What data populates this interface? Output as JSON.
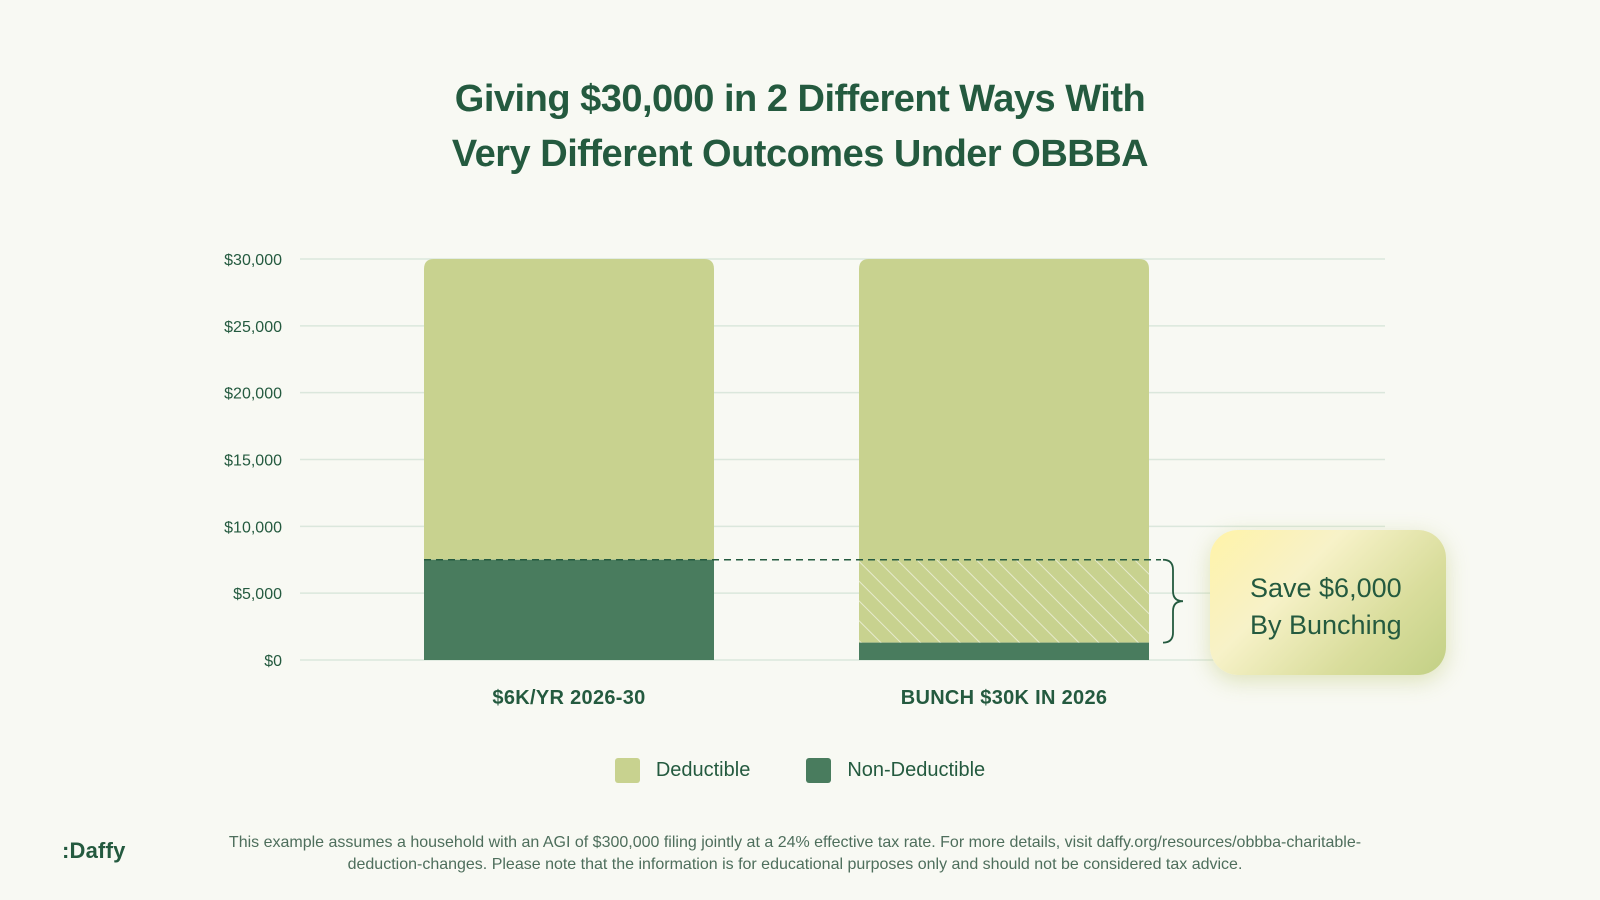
{
  "title": {
    "line1": "Giving $30,000 in 2 Different Ways With",
    "line2": "Very Different Outcomes Under OBBBA"
  },
  "colors": {
    "deductible": "#c8d28f",
    "non_deductible": "#497c5e",
    "text": "#245a3f",
    "grid": "#dbe7dc",
    "background": "#f8f9f3"
  },
  "chart_data": {
    "type": "bar",
    "stacked": true,
    "categories": [
      "$6K/YR 2026-30",
      "BUNCH $30K IN 2026"
    ],
    "series": [
      {
        "name": "Non-Deductible",
        "values": [
          7500,
          1300
        ]
      },
      {
        "name": "Deductible",
        "values": [
          22500,
          28700
        ]
      }
    ],
    "ylim": [
      0,
      30000
    ],
    "yticks": [
      "$0",
      "$5,000",
      "$10,000",
      "$15,000",
      "$20,000",
      "$25,000",
      "$30,000"
    ],
    "ytick_values": [
      0,
      5000,
      10000,
      15000,
      20000,
      25000,
      30000
    ],
    "reference_line": 7500,
    "hatched_region": {
      "category": "BUNCH $30K IN 2026",
      "from": 1300,
      "to": 7500
    },
    "grid": true,
    "legend_position": "bottom"
  },
  "callout": {
    "line1": "Save $6,000",
    "line2": "By Bunching"
  },
  "legend": [
    {
      "label": "Deductible",
      "color": "#c8d28f"
    },
    {
      "label": "Non-Deductible",
      "color": "#497c5e"
    }
  ],
  "logo": ":Daffy",
  "footnote": "This example assumes a household with an AGI of $300,000 filing jointly at a 24% effective tax rate. For more details, visit daffy.org/resources/obbba-charitable-deduction-changes. Please note that the information is for educational purposes only and should not be considered tax advice."
}
